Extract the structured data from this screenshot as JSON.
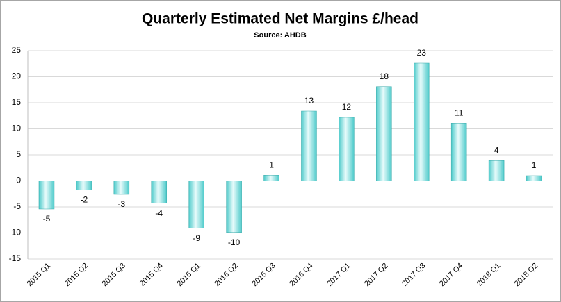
{
  "chart_data": {
    "type": "bar",
    "title": "Quarterly Estimated Net Margins £/head",
    "subtitle": "Source: AHDB",
    "categories": [
      "2015 Q1",
      "2015 Q2",
      "2015 Q3",
      "2015 Q4",
      "2016 Q1",
      "2016 Q2",
      "2016 Q3",
      "2016 Q4",
      "2017 Q1",
      "2017 Q2",
      "2017 Q3",
      "2017 Q4",
      "2018 Q1",
      "2018 Q2"
    ],
    "values": [
      -5.4,
      -1.7,
      -2.6,
      -4.3,
      -9.1,
      -9.9,
      1.1,
      13.4,
      12.2,
      18.1,
      22.6,
      11.1,
      3.9,
      1.0
    ],
    "value_labels": [
      "-5",
      "-2",
      "-3",
      "-4",
      "-9",
      "-10",
      "1",
      "13",
      "12",
      "18",
      "23",
      "11",
      "4",
      "1"
    ],
    "color": "#4ccaca",
    "ylim": [
      -15,
      25
    ],
    "yticks": [
      -15,
      -10,
      -5,
      0,
      5,
      10,
      15,
      20,
      25
    ],
    "grid": true
  }
}
